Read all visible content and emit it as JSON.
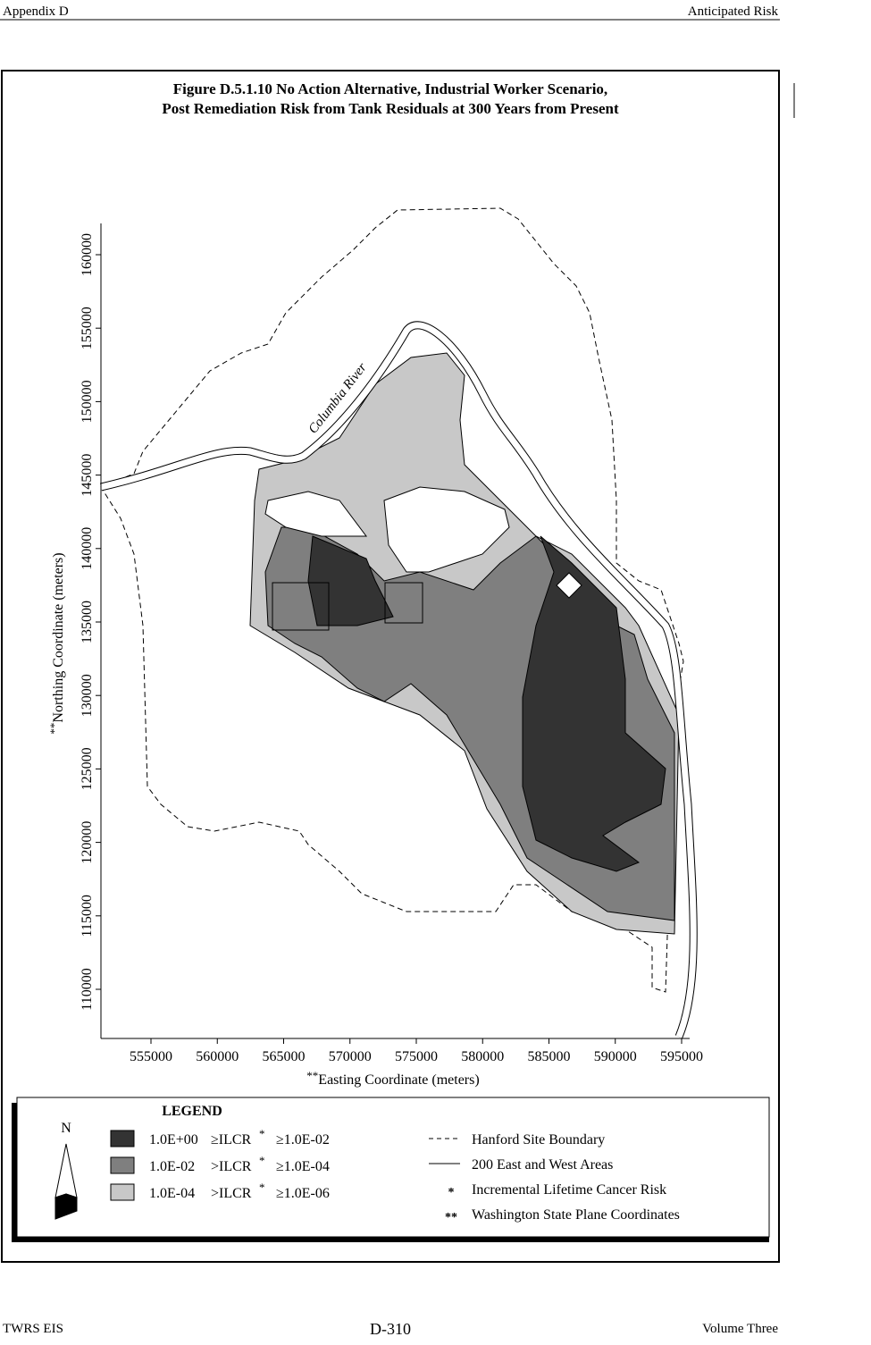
{
  "header": {
    "left": "Appendix D",
    "right": "Anticipated Risk"
  },
  "figure": {
    "title_lines": [
      "Figure D.5.1.10  No Action Alternative, Industrial Worker Scenario,",
      "Post Remediation Risk from Tank Residuals at 300 Years from Present"
    ],
    "x_axis": {
      "label_prefix": "**",
      "label": "Easting Coordinate (meters)",
      "ticks": [
        555000,
        560000,
        565000,
        570000,
        575000,
        580000,
        585000,
        590000,
        595000
      ]
    },
    "y_axis": {
      "label_prefix": "**",
      "label": "Northing Coordinate (meters)",
      "ticks": [
        110000,
        115000,
        120000,
        125000,
        130000,
        135000,
        140000,
        145000,
        150000,
        155000,
        160000
      ]
    },
    "river_label": "Columbia River",
    "legend": {
      "title": "LEGEND",
      "north": "N",
      "risk_classes": [
        {
          "lead": "1.0E+00",
          "rel": "≥ILCR",
          "sup": "*",
          "tail": "≥1.0E-02",
          "color": "#333333"
        },
        {
          "lead": "1.0E-02",
          "rel": ">ILCR",
          "sup": "*",
          "tail": "≥1.0E-04",
          "color": "#7f7f7f"
        },
        {
          "lead": "1.0E-04",
          "rel": ">ILCR",
          "sup": "*",
          "tail": "≥1.0E-06",
          "color": "#c8c8c8"
        }
      ],
      "notes": [
        {
          "text": "Hanford Site Boundary"
        },
        {
          "text": "200 East and West Areas"
        },
        {
          "symbol": "*",
          "text": "Incremental Lifetime Cancer Risk"
        },
        {
          "symbol": "**",
          "text": "Washington State Plane Coordinates"
        }
      ]
    }
  },
  "footer": {
    "left": "TWRS EIS",
    "center": "D-310",
    "right": "Volume Three"
  }
}
